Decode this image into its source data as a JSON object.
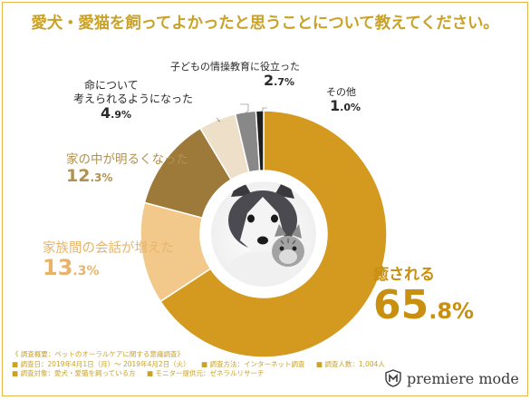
{
  "title": "愛犬・愛猫を飼ってよかったと思うことについて教えてください。",
  "chart_data": {
    "type": "pie",
    "variant": "donut",
    "title": "愛犬・愛猫を飼ってよかったと思うことについて教えてください。",
    "slices": [
      {
        "label": "癒される",
        "value": 65.8,
        "value_text": "65.8%",
        "color": "#d39a1f"
      },
      {
        "label": "家族間の会話が増えた",
        "value": 13.3,
        "value_text": "13.3%",
        "color": "#f2c98a"
      },
      {
        "label": "家の中が明るくなった",
        "value": 12.3,
        "value_text": "12.3%",
        "color": "#9d7a3a"
      },
      {
        "label": "命について考えられるようになった",
        "label_lines": [
          "命について",
          "考えられるようになった"
        ],
        "value": 4.9,
        "value_text": "4.9%",
        "color": "#eee0c8"
      },
      {
        "label": "子どもの情操教育に役立った",
        "value": 2.7,
        "value_text": "2.7%",
        "color": "#888888"
      },
      {
        "label": "その他",
        "value": 1.0,
        "value_text": "1.0%",
        "color": "#1e1e1e"
      }
    ],
    "center_image": "puppy-and-kitten-photo"
  },
  "footer": {
    "heading": "《 調査概要：ペットのオーラルケアに関する意識調査》",
    "rows": [
      [
        "■ 調査日：2019年4月1日（月）〜 2019年4月2日（火）",
        "■ 調査方法：インターネット調査",
        "■ 調査人数：1,004人"
      ],
      [
        "■ 調査対象：愛犬・愛猫を飼っている方",
        "■ モニター提供元：ゼネラルリサーチ"
      ]
    ]
  },
  "logo": {
    "text": "premiere mode",
    "icon": "shield-m-icon"
  },
  "colors": {
    "accent": "#c9a227",
    "border": "#e8b64a"
  }
}
